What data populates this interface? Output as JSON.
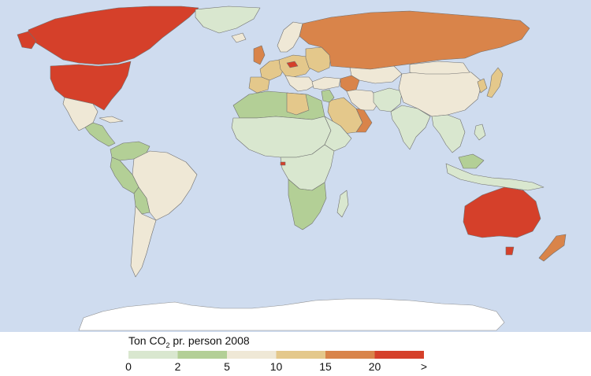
{
  "legend": {
    "title_main": "Ton CO",
    "title_sub": "2",
    "title_rest": " pr. person 2008",
    "bins": [
      {
        "from": 0,
        "to": 2,
        "color": "#d9e7cf"
      },
      {
        "from": 2,
        "to": 5,
        "color": "#b3cf96"
      },
      {
        "from": 5,
        "to": 10,
        "color": "#efe8d6"
      },
      {
        "from": 10,
        "to": 15,
        "color": "#e4c88b"
      },
      {
        "from": 15,
        "to": 20,
        "color": "#d9844a"
      },
      {
        "from": 20,
        "to": null,
        "color": "#d5402a"
      }
    ],
    "ticks": [
      "0",
      "2",
      "5",
      "10",
      "15",
      "20",
      ">"
    ]
  },
  "colors": {
    "ocean": "#cfdcef",
    "antarctica": "#ffffff",
    "border": "#6f6f6f"
  }
}
